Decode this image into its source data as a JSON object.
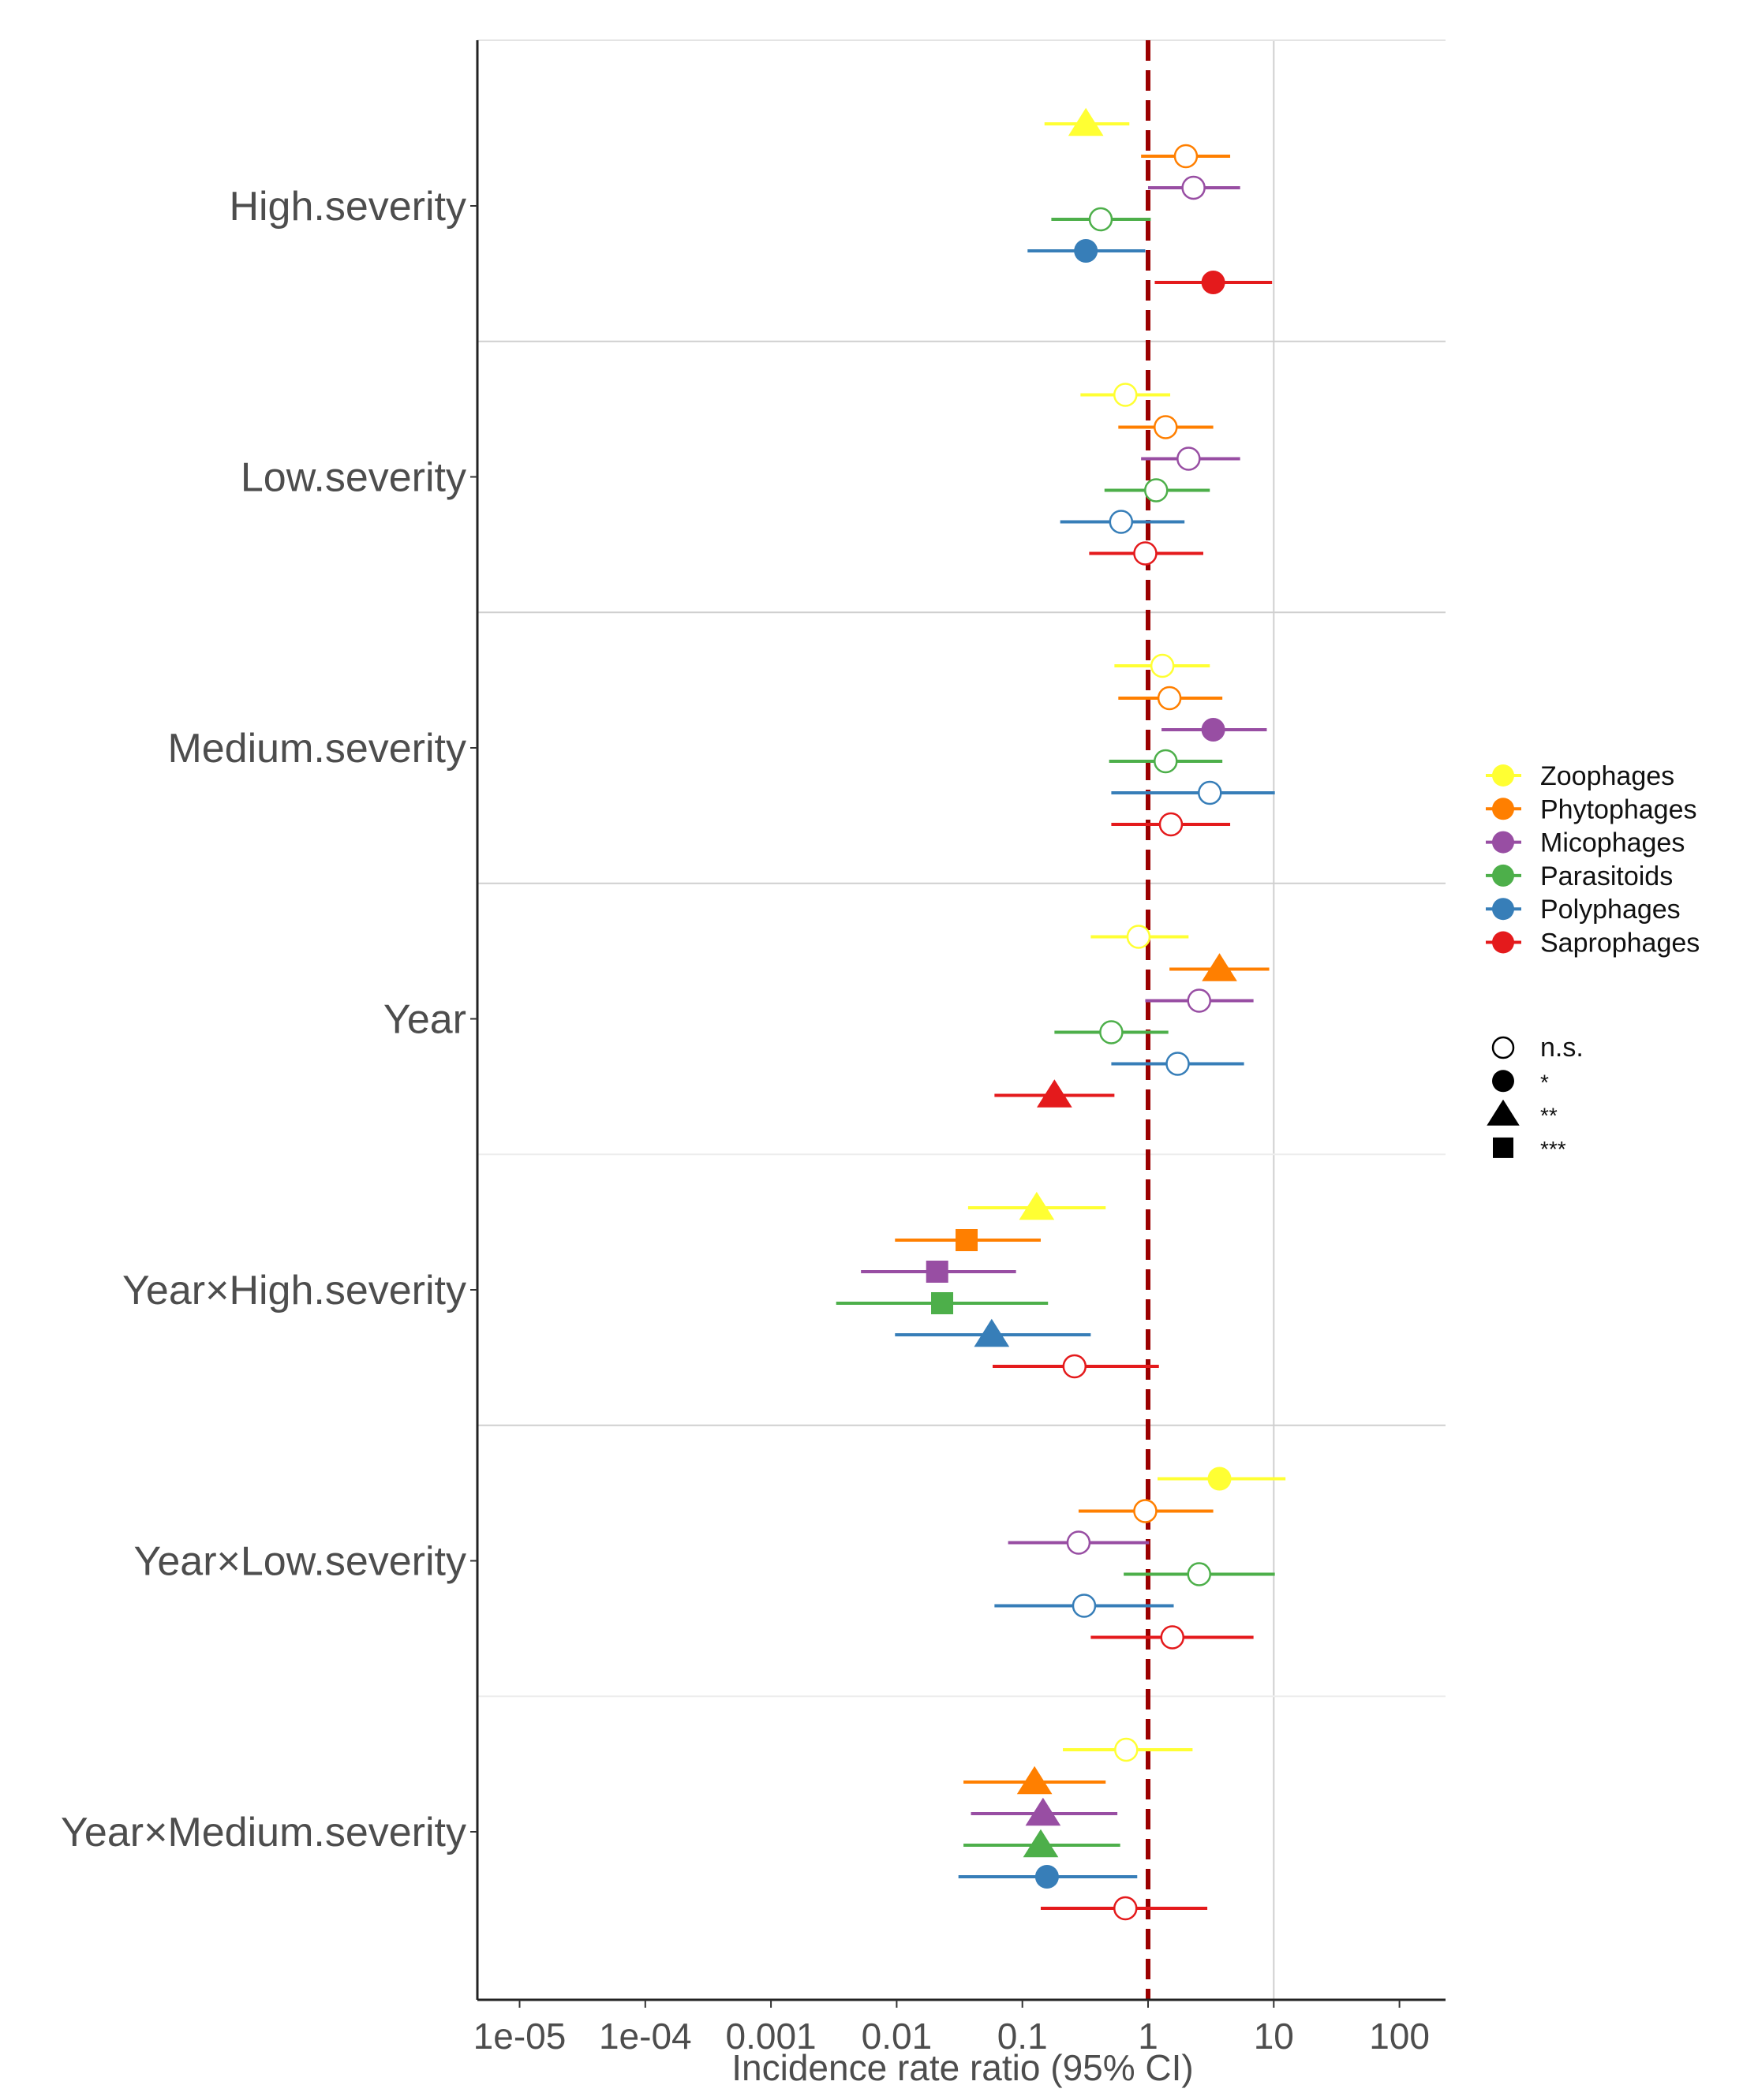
{
  "chart_data": {
    "type": "forest",
    "title": "",
    "xlabel": "Incidence rate ratio (95% CI)",
    "xscale": "log10",
    "xlim": [
      6e-06,
      180
    ],
    "xticks": [
      1e-05,
      0.0001,
      0.001,
      0.01,
      0.1,
      1,
      10,
      100
    ],
    "xtick_labels": [
      "1e-05",
      "1e-04",
      "0.001",
      "0.01",
      "0.1",
      "1",
      "10",
      "100"
    ],
    "reference_line": 1,
    "reference_color": "#9B0000",
    "legend_placement": "right",
    "categories": [
      "High.severity",
      "Low.severity",
      "Medium.severity",
      "Year",
      "Year×High.severity",
      "Year×Low.severity",
      "Year×Medium.severity"
    ],
    "series_legend": [
      {
        "name": "Zoophages",
        "color": "#FFFF33"
      },
      {
        "name": "Phytophages",
        "color": "#FF7F00"
      },
      {
        "name": "Micophages",
        "color": "#984EA3"
      },
      {
        "name": "Parasitoids",
        "color": "#4DAF4A"
      },
      {
        "name": "Polyphages",
        "color": "#377EB8"
      },
      {
        "name": "Saprophages",
        "color": "#E41A1C"
      }
    ],
    "significance_legend": [
      {
        "label": "n.s.",
        "shape": "open-circle"
      },
      {
        "label": "*",
        "shape": "circle"
      },
      {
        "label": "**",
        "shape": "triangle"
      },
      {
        "label": "***",
        "shape": "square"
      }
    ],
    "series": [
      {
        "name": "Zoophages",
        "values": [
          {
            "est": 0.32,
            "lo": 0.15,
            "hi": 0.71,
            "sig": "**"
          },
          {
            "est": 0.66,
            "lo": 0.29,
            "hi": 1.5,
            "sig": "n.s."
          },
          {
            "est": 1.3,
            "lo": 0.54,
            "hi": 3.1,
            "sig": "n.s."
          },
          {
            "est": 0.84,
            "lo": 0.35,
            "hi": 2.1,
            "sig": "n.s."
          },
          {
            "est": 0.13,
            "lo": 0.037,
            "hi": 0.46,
            "sig": "**"
          },
          {
            "est": 3.7,
            "lo": 1.19,
            "hi": 12.4,
            "sig": "*"
          },
          {
            "est": 0.67,
            "lo": 0.21,
            "hi": 2.26,
            "sig": "n.s."
          }
        ]
      },
      {
        "name": "Phytophages",
        "values": [
          {
            "est": 2.0,
            "lo": 0.88,
            "hi": 4.5,
            "sig": "n.s."
          },
          {
            "est": 1.38,
            "lo": 0.58,
            "hi": 3.3,
            "sig": "n.s."
          },
          {
            "est": 1.48,
            "lo": 0.58,
            "hi": 3.9,
            "sig": "n.s."
          },
          {
            "est": 3.7,
            "lo": 1.48,
            "hi": 9.2,
            "sig": "**"
          },
          {
            "est": 0.036,
            "lo": 0.0097,
            "hi": 0.14,
            "sig": "***"
          },
          {
            "est": 0.95,
            "lo": 0.28,
            "hi": 3.3,
            "sig": "n.s."
          },
          {
            "est": 0.125,
            "lo": 0.034,
            "hi": 0.46,
            "sig": "**"
          }
        ]
      },
      {
        "name": "Micophages",
        "values": [
          {
            "est": 2.3,
            "lo": 1.0,
            "hi": 5.4,
            "sig": "n.s."
          },
          {
            "est": 2.1,
            "lo": 0.88,
            "hi": 5.4,
            "sig": "n.s."
          },
          {
            "est": 3.3,
            "lo": 1.28,
            "hi": 8.8,
            "sig": "*"
          },
          {
            "est": 2.55,
            "lo": 0.95,
            "hi": 6.9,
            "sig": "n.s."
          },
          {
            "est": 0.021,
            "lo": 0.0052,
            "hi": 0.089,
            "sig": "***"
          },
          {
            "est": 0.28,
            "lo": 0.077,
            "hi": 1.02,
            "sig": "n.s."
          },
          {
            "est": 0.146,
            "lo": 0.039,
            "hi": 0.57,
            "sig": "**"
          }
        ]
      },
      {
        "name": "Parasitoids",
        "values": [
          {
            "est": 0.42,
            "lo": 0.17,
            "hi": 1.05,
            "sig": "n.s."
          },
          {
            "est": 1.16,
            "lo": 0.45,
            "hi": 3.1,
            "sig": "n.s."
          },
          {
            "est": 1.38,
            "lo": 0.49,
            "hi": 3.9,
            "sig": "n.s."
          },
          {
            "est": 0.51,
            "lo": 0.18,
            "hi": 1.45,
            "sig": "n.s."
          },
          {
            "est": 0.023,
            "lo": 0.0033,
            "hi": 0.16,
            "sig": "***"
          },
          {
            "est": 2.55,
            "lo": 0.64,
            "hi": 10.2,
            "sig": "n.s."
          },
          {
            "est": 0.14,
            "lo": 0.034,
            "hi": 0.6,
            "sig": "**"
          }
        ]
      },
      {
        "name": "Polyphages",
        "values": [
          {
            "est": 0.32,
            "lo": 0.11,
            "hi": 0.95,
            "sig": "*"
          },
          {
            "est": 0.61,
            "lo": 0.2,
            "hi": 1.95,
            "sig": "n.s."
          },
          {
            "est": 3.1,
            "lo": 0.51,
            "hi": 10.2,
            "sig": "n.s."
          },
          {
            "est": 1.72,
            "lo": 0.51,
            "hi": 5.8,
            "sig": "n.s."
          },
          {
            "est": 0.057,
            "lo": 0.0097,
            "hi": 0.35,
            "sig": "**"
          },
          {
            "est": 0.31,
            "lo": 0.06,
            "hi": 1.6,
            "sig": "n.s."
          },
          {
            "est": 0.157,
            "lo": 0.031,
            "hi": 0.82,
            "sig": "*"
          }
        ]
      },
      {
        "name": "Saprophages",
        "values": [
          {
            "est": 3.3,
            "lo": 1.13,
            "hi": 9.7,
            "sig": "*"
          },
          {
            "est": 0.95,
            "lo": 0.34,
            "hi": 2.75,
            "sig": "n.s."
          },
          {
            "est": 1.52,
            "lo": 0.51,
            "hi": 4.5,
            "sig": "n.s."
          },
          {
            "est": 0.18,
            "lo": 0.06,
            "hi": 0.54,
            "sig": "**"
          },
          {
            "est": 0.26,
            "lo": 0.058,
            "hi": 1.22,
            "sig": "n.s."
          },
          {
            "est": 1.56,
            "lo": 0.35,
            "hi": 6.9,
            "sig": "n.s."
          },
          {
            "est": 0.66,
            "lo": 0.14,
            "hi": 2.96,
            "sig": "n.s."
          }
        ]
      }
    ]
  }
}
